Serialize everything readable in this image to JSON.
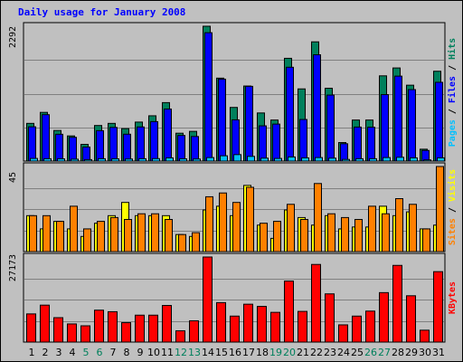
{
  "chart_data": {
    "type": "bar",
    "title": "Daily usage for January 2008",
    "colors": {
      "background": "#c0c0c0",
      "hits": "#00805c",
      "files": "#0000ff",
      "pages": "#00c0ff",
      "visits": "#ffff00",
      "sites": "#ff8000",
      "kbytes": "#ff0000",
      "title": "#0000ff",
      "weekend_label": "#00805c",
      "weekday_label": "#000000"
    },
    "categories": [
      "1",
      "2",
      "3",
      "4",
      "5",
      "6",
      "7",
      "8",
      "9",
      "10",
      "11",
      "12",
      "13",
      "14",
      "15",
      "16",
      "17",
      "18",
      "19",
      "20",
      "21",
      "22",
      "23",
      "24",
      "25",
      "26",
      "27",
      "28",
      "29",
      "30",
      "31"
    ],
    "weekend_days": [
      "5",
      "6",
      "12",
      "13",
      "19",
      "20",
      "26",
      "27"
    ],
    "panels": [
      {
        "id": "hits-files-pages",
        "max_label": "2292",
        "ylim": [
          0,
          2292
        ],
        "legend": [
          {
            "text": "Pages",
            "color": "#00c0ff"
          },
          {
            "text": " / ",
            "color": "#000000"
          },
          {
            "text": "Files",
            "color": "#0000ff"
          },
          {
            "text": " / ",
            "color": "#000000"
          },
          {
            "text": "Hits",
            "color": "#00805c"
          }
        ],
        "series": [
          {
            "name": "Hits",
            "color": "#00805c",
            "values": [
              641,
              828,
              520,
              428,
              284,
              605,
              641,
              552,
              663,
              770,
              994,
              474,
              505,
              2292,
              1410,
              912,
              1276,
              818,
              698,
              1747,
              1227,
              2027,
              1238,
              315,
              698,
              698,
              1449,
              1583,
              1290,
              202,
              1527
            ]
          },
          {
            "name": "Files",
            "color": "#0000ff",
            "values": [
              583,
              789,
              456,
              404,
              239,
              517,
              572,
              457,
              580,
              671,
              885,
              436,
              418,
              2182,
              1393,
              701,
              1271,
              599,
              629,
              1595,
              707,
              1807,
              1122,
              295,
              578,
              576,
              1130,
              1444,
              1215,
              181,
              1339
            ]
          },
          {
            "name": "Pages",
            "color": "#00c0ff",
            "values": [
              45,
              40,
              38,
              32,
              25,
              40,
              38,
              35,
              40,
              42,
              55,
              38,
              35,
              60,
              90,
              110,
              80,
              50,
              45,
              70,
              55,
              60,
              50,
              28,
              40,
              40,
              60,
              65,
              55,
              20,
              55
            ]
          }
        ]
      },
      {
        "id": "visits-sites",
        "max_label": "45",
        "ylim": [
          0,
          45
        ],
        "legend": [
          {
            "text": "Sites",
            "color": "#ff8000"
          },
          {
            "text": " / ",
            "color": "#000000"
          },
          {
            "text": "Visits",
            "color": "#ffff00"
          }
        ],
        "series": [
          {
            "name": "Visits",
            "color": "#ffff00",
            "values": [
              19,
              12,
              16,
              12,
              8,
              15,
              19,
              26,
              19,
              19,
              19,
              9,
              8,
              22,
              24,
              19,
              35,
              14,
              7,
              22,
              18,
              14,
              19,
              12,
              13,
              13,
              24,
              19,
              21,
              12,
              14
            ]
          },
          {
            "name": "Sites",
            "color": "#ff8000",
            "values": [
              19,
              19,
              16,
              24,
              12,
              16,
              18,
              17,
              20,
              20,
              17,
              9,
              10,
              29,
              31,
              26,
              34,
              15,
              16,
              25,
              17,
              36,
              20,
              18,
              17,
              24,
              20,
              28,
              25,
              12,
              45
            ]
          }
        ]
      },
      {
        "id": "kbytes",
        "max_label": "27173",
        "ylim": [
          0,
          27173
        ],
        "legend": [
          {
            "text": "KBytes",
            "color": "#ff0000"
          }
        ],
        "series": [
          {
            "name": "KBytes",
            "color": "#ff0000",
            "values": [
              9000,
              11800,
              7800,
              5800,
              5200,
              10200,
              9700,
              6200,
              8600,
              8600,
              11700,
              3600,
              6800,
              27173,
              12600,
              8300,
              12100,
              11400,
              9500,
              19500,
              9800,
              24800,
              15400,
              5500,
              8300,
              9900,
              15800,
              24500,
              14800,
              3800,
              22500
            ]
          }
        ]
      }
    ]
  }
}
